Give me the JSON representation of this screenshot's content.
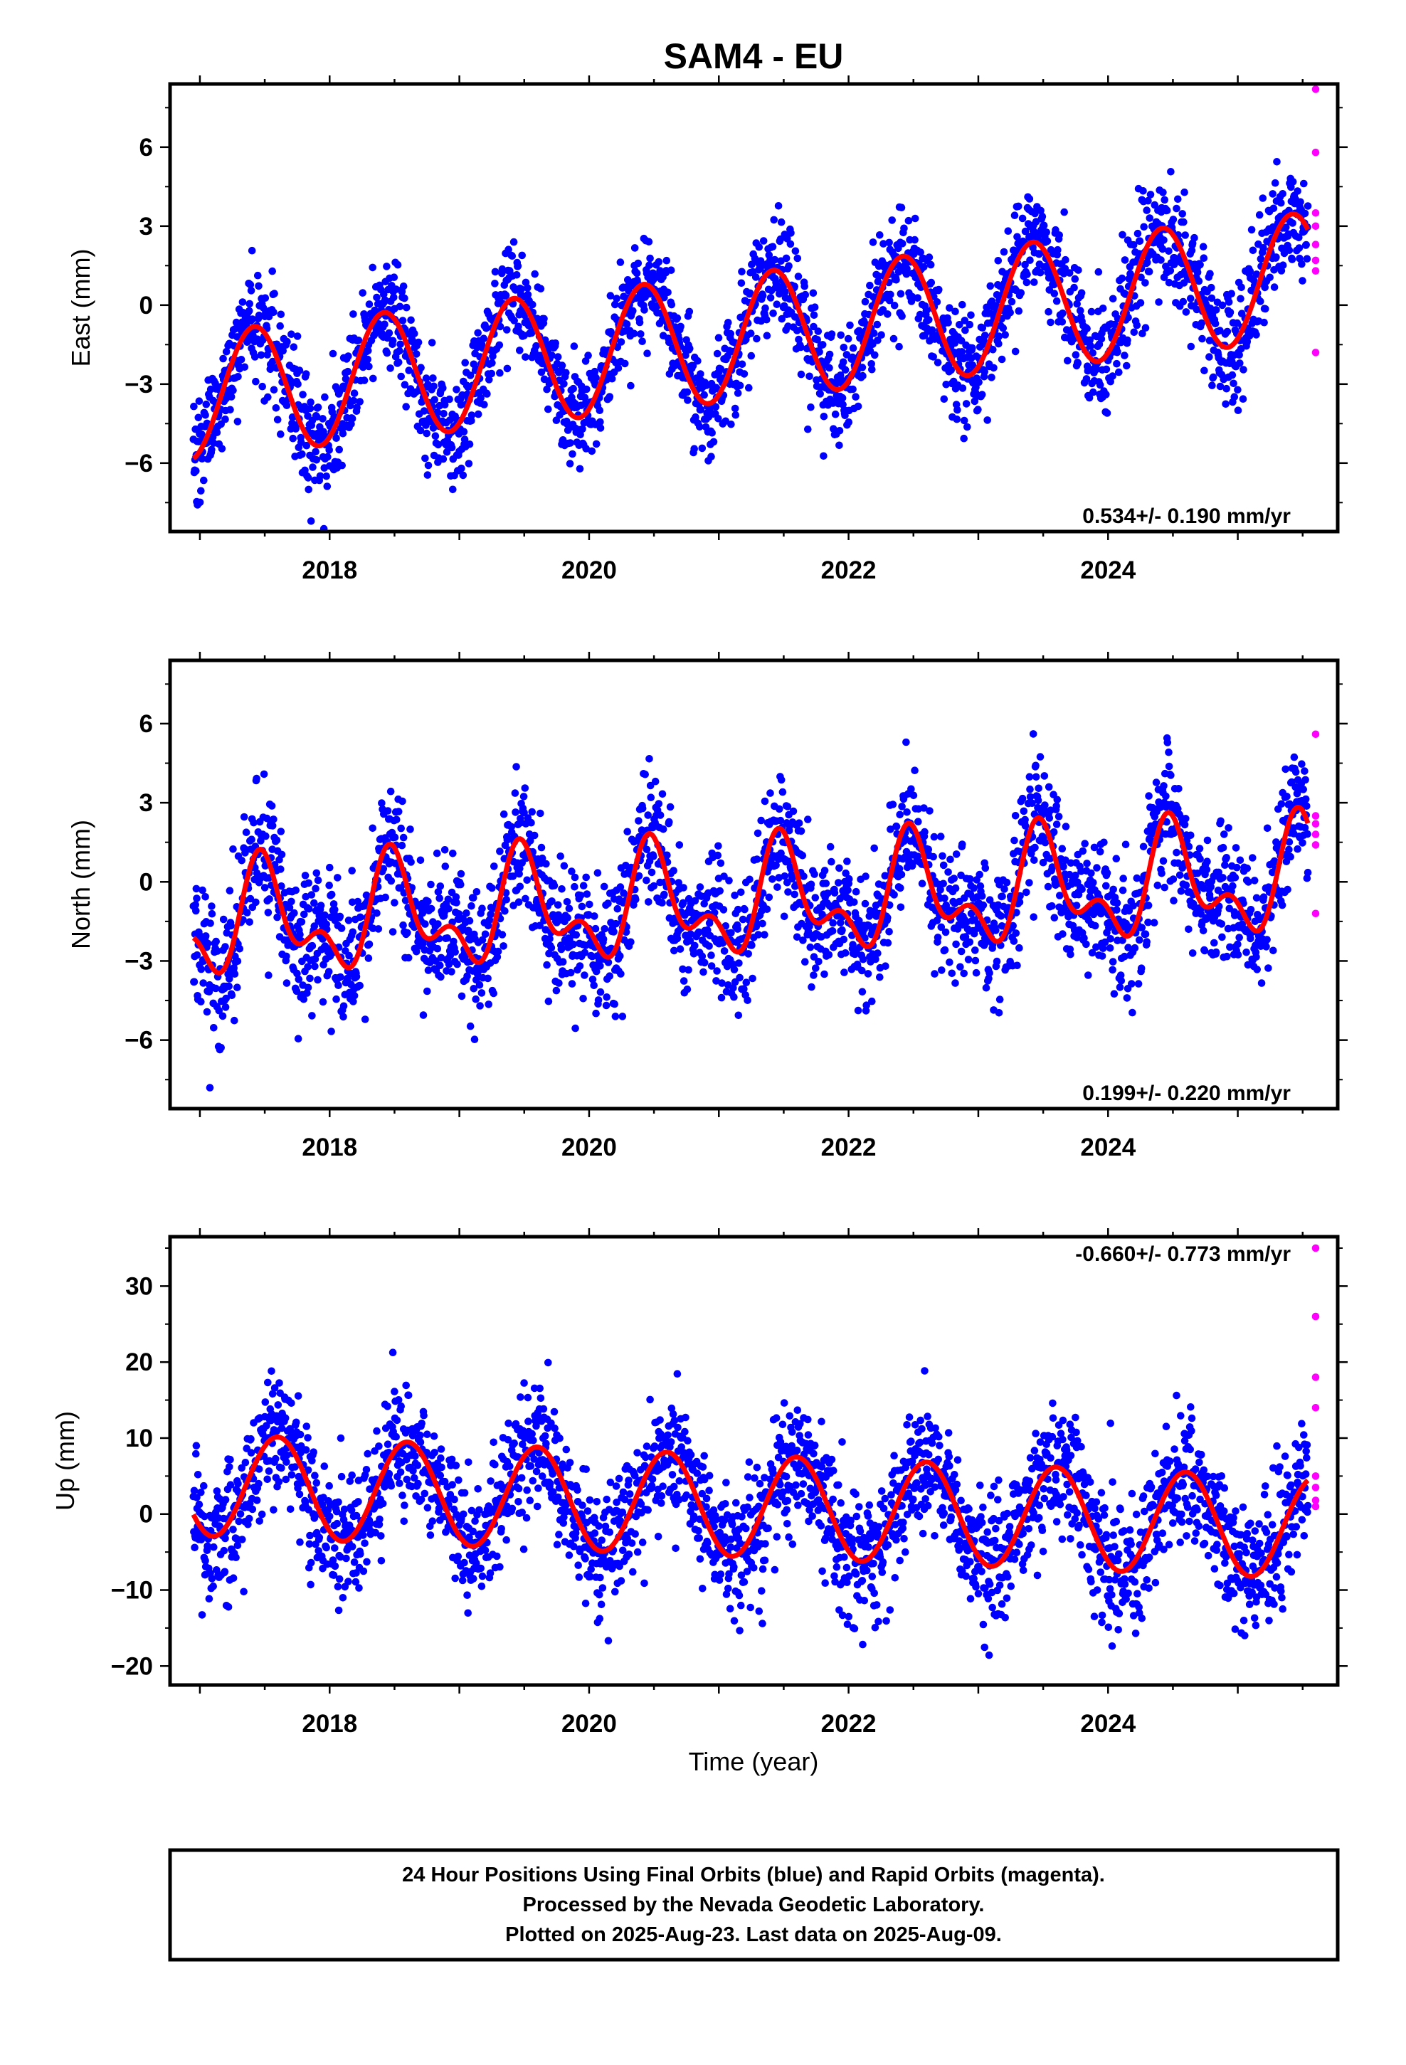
{
  "figure": {
    "title": "SAM4 - EU",
    "xlabel": "Time (year)",
    "footer": [
      "24 Hour Positions Using Final Orbits (blue) and Rapid Orbits (magenta).",
      "Processed by the Nevada Geodetic Laboratory.",
      "Plotted on 2025-Aug-23. Last data on 2025-Aug-09."
    ],
    "colors": {
      "final": "#0000ff",
      "rapid": "#ff00ff",
      "model": "#ff0000",
      "frame": "#000000"
    }
  },
  "chart_data": [
    {
      "type": "scatter",
      "name": "east",
      "ylabel": "East (mm)",
      "rate_label": "0.534+/- 0.190 mm/yr",
      "xlim": [
        2016.77,
        2025.77
      ],
      "ylim": [
        -8.6,
        8.4
      ],
      "xticks": [
        2018,
        2020,
        2022,
        2024
      ],
      "xtick_labels": [
        "2018",
        "2020",
        "2022",
        "2024"
      ],
      "yticks": [
        6,
        3,
        0,
        -3,
        -6
      ],
      "ytick_labels": [
        "6",
        "3",
        "0",
        "−3",
        "−6"
      ],
      "x_start": 2016.95,
      "x_end": 2025.54,
      "trend": {
        "offset": -1.3,
        "rate": 0.534,
        "ref_year": 2021.0
      },
      "annual": {
        "amplitude": 2.4,
        "peak_phase": 0.42
      },
      "semiannual": {
        "amplitude": 0.0,
        "peak_phase": 0.0
      },
      "noise_sd": 1.05,
      "n_points": 2700,
      "rapid": {
        "x": [
          2025.6,
          2025.6,
          2025.6,
          2025.6,
          2025.6,
          2025.6,
          2025.6,
          2025.6
        ],
        "y": [
          8.2,
          5.8,
          3.5,
          3.0,
          2.3,
          1.7,
          1.3,
          -1.8
        ]
      }
    },
    {
      "type": "scatter",
      "name": "north",
      "ylabel": "North (mm)",
      "rate_label": "0.199+/- 0.220 mm/yr",
      "xlim": [
        2016.77,
        2025.77
      ],
      "ylim": [
        -8.6,
        8.4
      ],
      "xticks": [
        2018,
        2020,
        2022,
        2024
      ],
      "xtick_labels": [
        "2018",
        "2020",
        "2022",
        "2024"
      ],
      "yticks": [
        6,
        3,
        0,
        -3,
        -6
      ],
      "ytick_labels": [
        "6",
        "3",
        "0",
        "−3",
        "−6"
      ],
      "x_start": 2016.95,
      "x_end": 2025.54,
      "trend": {
        "offset": -0.8,
        "rate": 0.199,
        "ref_year": 2021.0
      },
      "annual": {
        "amplitude": 1.7,
        "peak_phase": 0.5
      },
      "semiannual": {
        "amplitude": 1.1,
        "peak_phase": 0.45
      },
      "noise_sd": 1.2,
      "n_points": 2700,
      "rapid": {
        "x": [
          2025.6,
          2025.6,
          2025.6,
          2025.6,
          2025.6,
          2025.6
        ],
        "y": [
          5.6,
          2.5,
          2.2,
          1.8,
          1.4,
          -1.2
        ]
      }
    },
    {
      "type": "scatter",
      "name": "up",
      "ylabel": "Up (mm)",
      "rate_label": "-0.660+/- 0.773 mm/yr",
      "xlim": [
        2016.77,
        2025.77
      ],
      "ylim": [
        -22.5,
        36.5
      ],
      "xticks": [
        2018,
        2020,
        2022,
        2024
      ],
      "xtick_labels": [
        "2018",
        "2020",
        "2022",
        "2024"
      ],
      "yticks": [
        30,
        20,
        10,
        0,
        -10,
        -20
      ],
      "ytick_labels": [
        "30",
        "20",
        "10",
        "0",
        "−10",
        "−20"
      ],
      "x_start": 2016.95,
      "x_end": 2025.54,
      "trend": {
        "offset": 1.2,
        "rate": -0.66,
        "ref_year": 2021.0
      },
      "annual": {
        "amplitude": 6.7,
        "peak_phase": 0.6
      },
      "semiannual": {
        "amplitude": 0.0,
        "peak_phase": 0.0
      },
      "noise_sd": 4.2,
      "n_points": 2700,
      "rapid": {
        "x": [
          2025.6,
          2025.6,
          2025.6,
          2025.6,
          2025.6,
          2025.6,
          2025.6,
          2025.6
        ],
        "y": [
          35.0,
          26.0,
          18.0,
          14.0,
          5.0,
          3.5,
          1.8,
          1.0
        ]
      }
    }
  ]
}
